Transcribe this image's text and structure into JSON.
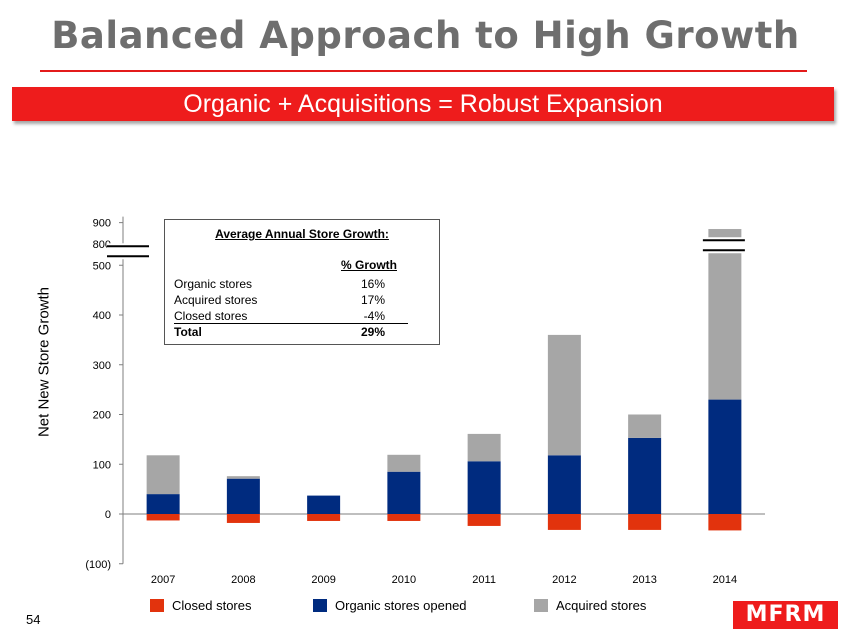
{
  "slide": {
    "title": "Balanced Approach to High Growth",
    "banner": "Organic + Acquisitions = Robust Expansion",
    "page_number": "54",
    "logo_text": "MFRM"
  },
  "colors": {
    "closed": "#e2330d",
    "organic": "#002b7f",
    "acquired": "#a6a6a6",
    "accent": "#ee1c1c"
  },
  "info_box": {
    "heading": "Average Annual Store Growth:",
    "column_header": "% Growth",
    "rows": [
      {
        "label": "Organic stores",
        "value": "16%"
      },
      {
        "label": "Acquired stores",
        "value": "17%"
      },
      {
        "label": "Closed stores",
        "value": "-4%"
      },
      {
        "label": "Total",
        "value": "29%"
      }
    ]
  },
  "legend": [
    {
      "label": "Closed stores",
      "color": "#e2330d"
    },
    {
      "label": "Organic stores opened",
      "color": "#002b7f"
    },
    {
      "label": "Acquired stores",
      "color": "#a6a6a6"
    }
  ],
  "chart_data": {
    "type": "bar",
    "stacked": true,
    "categories": [
      "2007",
      "2008",
      "2009",
      "2010",
      "2011",
      "2012",
      "2013",
      "2014"
    ],
    "series": [
      {
        "name": "Closed stores",
        "values": [
          -13,
          -18,
          -14,
          -14,
          -24,
          -32,
          -32,
          -33
        ]
      },
      {
        "name": "Organic stores opened",
        "values": [
          40,
          71,
          37,
          85,
          106,
          118,
          153,
          230
        ]
      },
      {
        "name": "Acquired stores",
        "values": [
          78,
          5,
          0,
          34,
          55,
          242,
          47,
          640
        ]
      }
    ],
    "xlabel": "",
    "ylabel": "Net New Store Growth",
    "ylim": [
      -100,
      900
    ],
    "axis_break": [
      500,
      800
    ],
    "yticks": [
      -100,
      0,
      100,
      200,
      300,
      400,
      500,
      800,
      900
    ],
    "ytick_labels": [
      "(100)",
      "0",
      "100",
      "200",
      "300",
      "400",
      "500",
      "800",
      "900"
    ],
    "grid": false,
    "legend_position": "bottom"
  }
}
